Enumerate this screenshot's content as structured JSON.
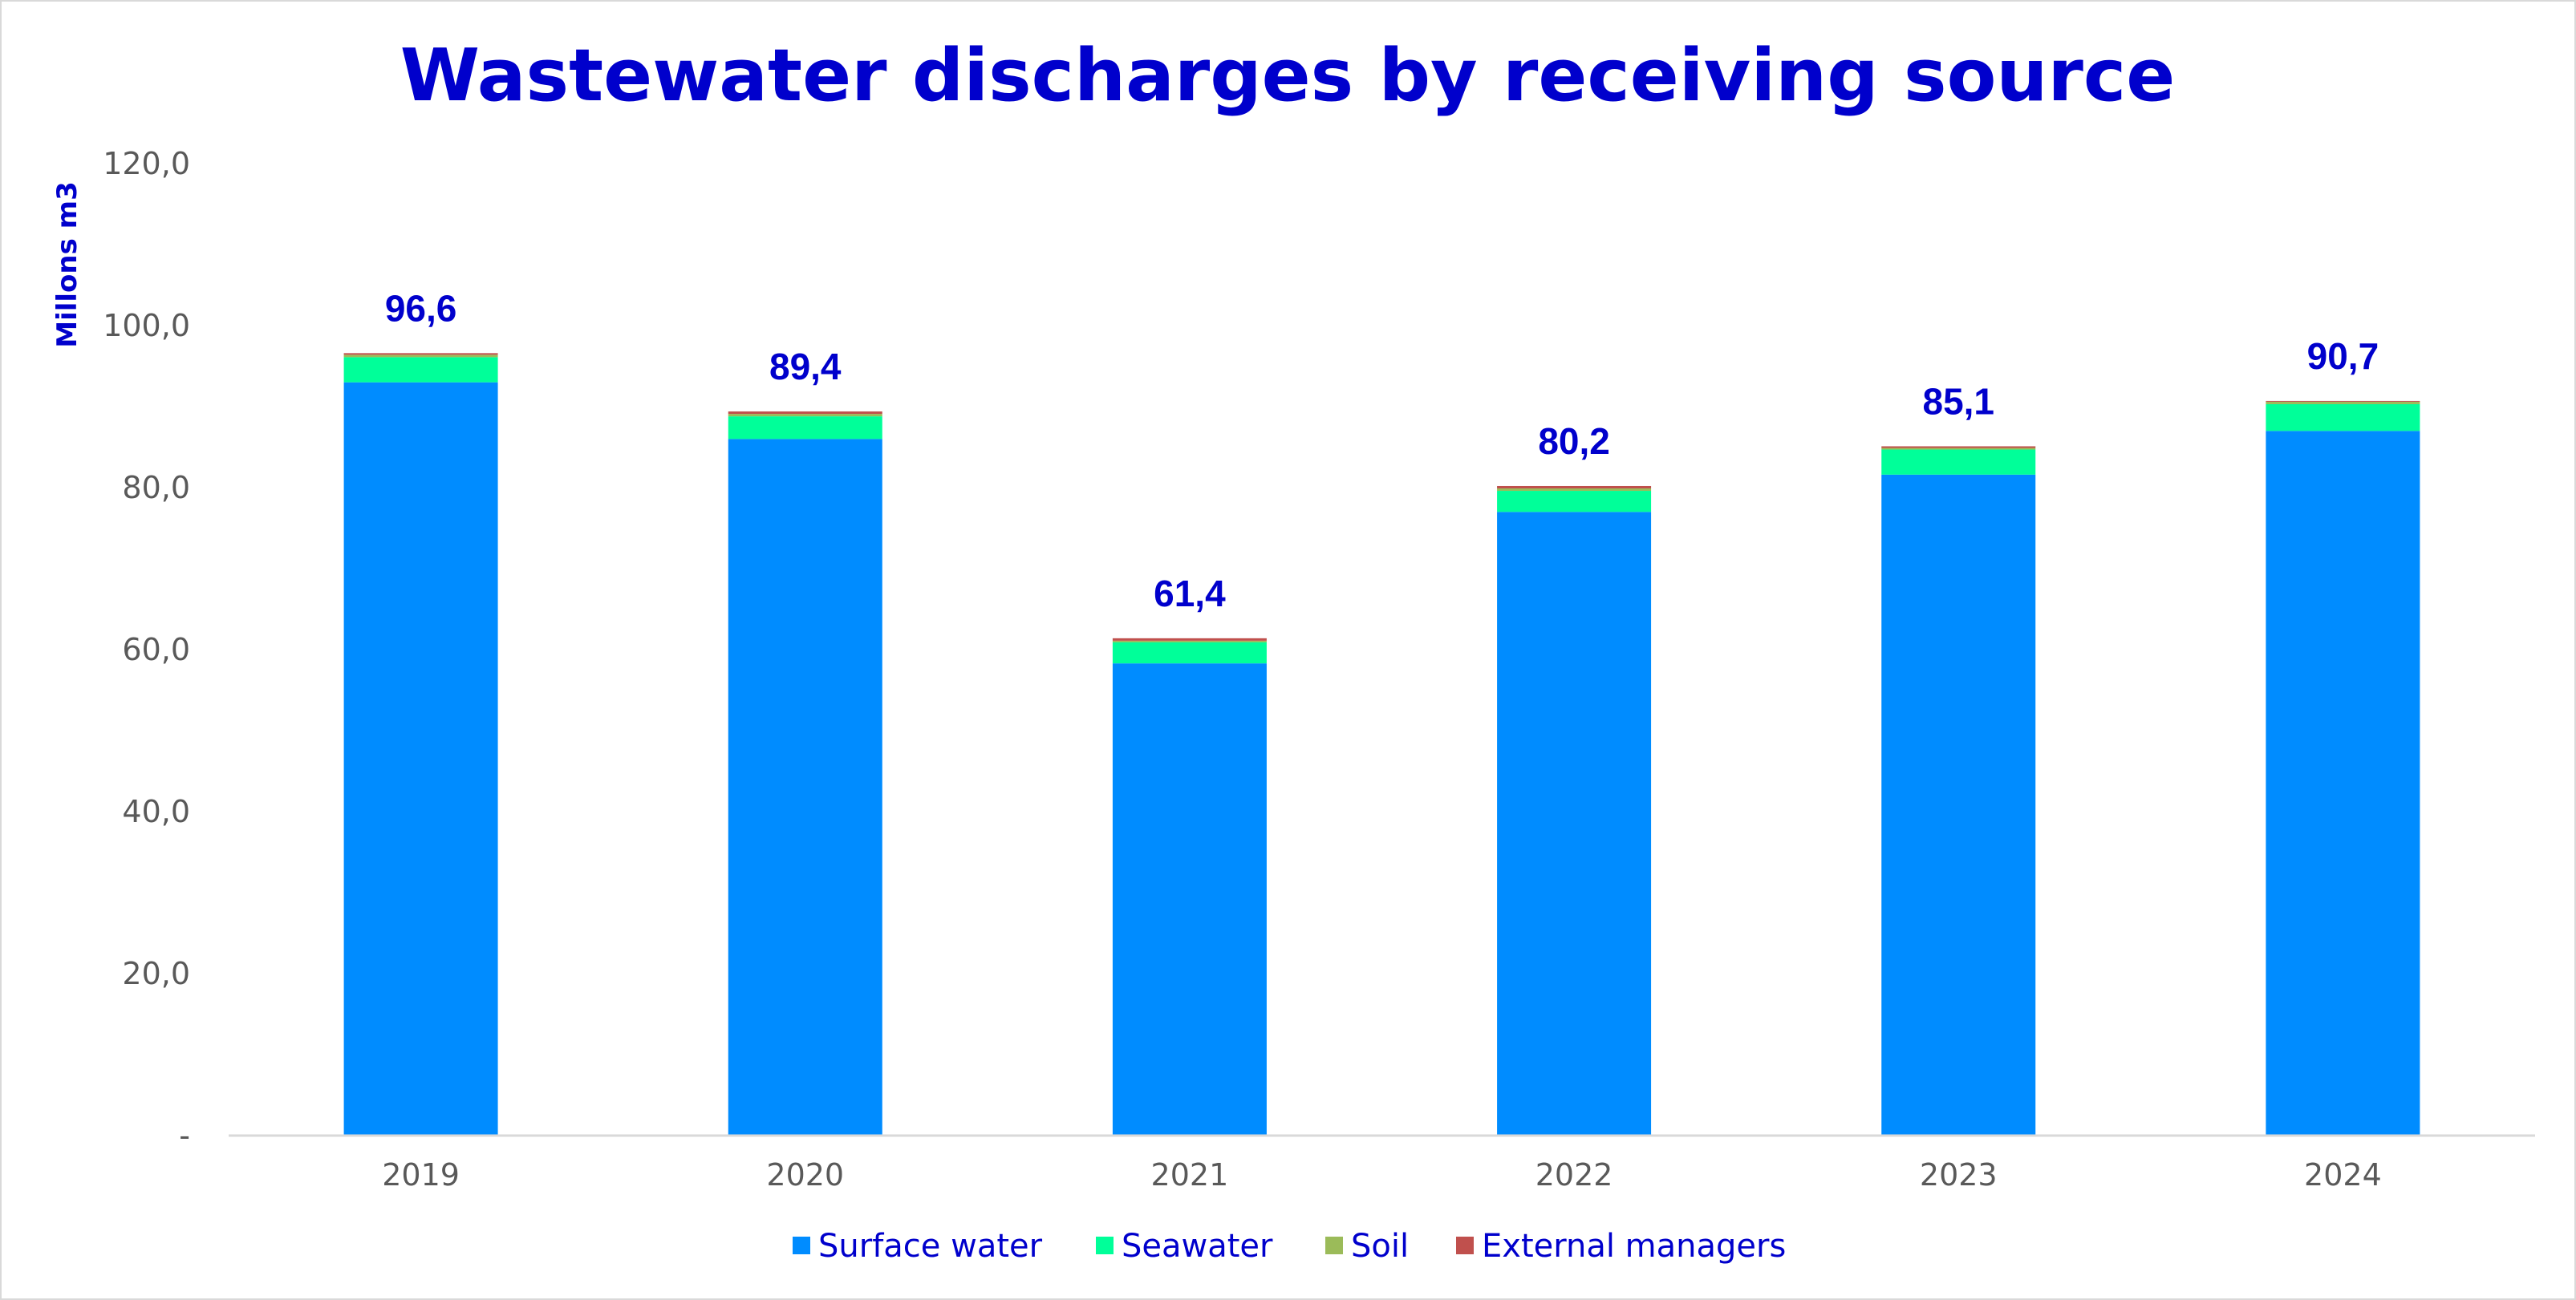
{
  "chart_data": {
    "type": "bar",
    "stacked": true,
    "title": "Wastewater discharges by receiving source",
    "ylabel": "Millons m3",
    "xlabel": "",
    "categories": [
      "2019",
      "2020",
      "2021",
      "2022",
      "2023",
      "2024"
    ],
    "ylim": [
      0,
      120
    ],
    "yticks": [
      0,
      20,
      40,
      60,
      80,
      100,
      120
    ],
    "ytick_labels": [
      "-",
      "20,0",
      "40,0",
      "60,0",
      "80,0",
      "100,0",
      "120,0"
    ],
    "series": [
      {
        "name": "Surface water",
        "color": "#008CFF",
        "values": [
          93.0,
          86.0,
          58.3,
          77.0,
          81.6,
          87.0
        ]
      },
      {
        "name": "Seawater",
        "color": "#00FF99",
        "values": [
          3.1,
          2.8,
          2.6,
          2.6,
          3.1,
          3.3
        ]
      },
      {
        "name": "Soil",
        "color": "#9BBB59",
        "values": [
          0.3,
          0.3,
          0.2,
          0.3,
          0.2,
          0.3
        ]
      },
      {
        "name": "External managers",
        "color": "#C0504D",
        "values": [
          0.2,
          0.3,
          0.3,
          0.3,
          0.2,
          0.1
        ]
      }
    ],
    "totals": [
      96.6,
      89.4,
      61.4,
      80.2,
      85.1,
      90.7
    ],
    "total_labels": [
      "96,6",
      "89,4",
      "61,4",
      "80,2",
      "85,1",
      "90,7"
    ],
    "legend_position": "bottom",
    "grid": false,
    "text_color": "#0000CC",
    "axis_color": "#D9D9D9"
  }
}
